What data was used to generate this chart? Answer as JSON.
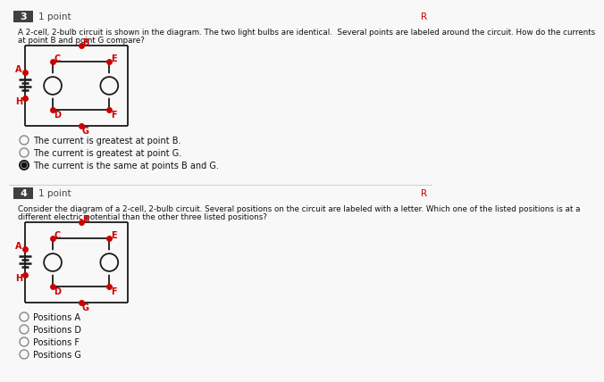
{
  "bg_color": "#f8f8f8",
  "q3_number": "3",
  "q3_points": "1 point",
  "q3_text_line1": "A 2-cell, 2-bulb circuit is shown in the diagram. The two light bulbs are identical.  Several points are labeled around the circuit. How do the currents",
  "q3_text_line2": "at point B and point G compare?",
  "q3_choices": [
    "The current is greatest at point B.",
    "The current is greatest at point G.",
    "The current is the same at points B and G."
  ],
  "q3_selected": 2,
  "q4_number": "4",
  "q4_points": "1 point",
  "q4_text_line1": "Consider the diagram of a 2-cell, 2-bulb circuit. Several positions on the circuit are labeled with a letter. Which one of the listed positions is at a",
  "q4_text_line2": "different electric potential than the other three listed positions?",
  "q4_choices": [
    "Positions A",
    "Positions D",
    "Positions F",
    "Positions G"
  ],
  "q4_selected": -1,
  "red_dot_color": "#cc0000",
  "wire_color": "#1a1a1a",
  "label_color": "#cc0000",
  "battery_color": "#1a1a1a",
  "header_bg": "#404040",
  "header_text": "#ffffff",
  "divider_color": "#cccccc",
  "radio_color": "#888888",
  "flag_color": "#cc0000"
}
